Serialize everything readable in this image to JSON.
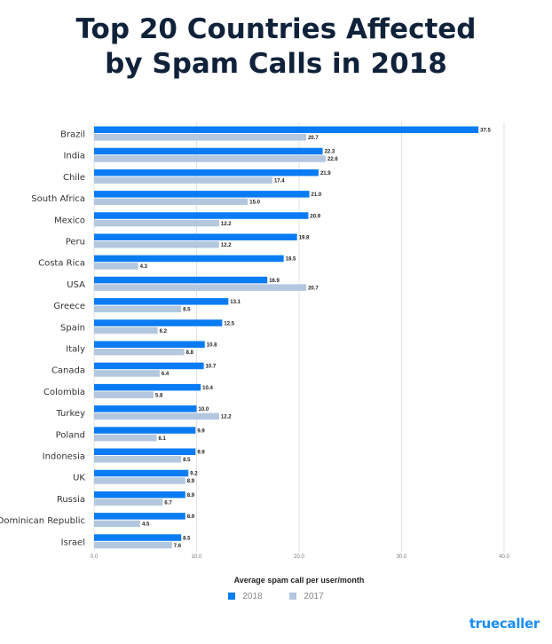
{
  "title_line1": "Top 20 Countries Affected",
  "title_line2": "by Spam Calls in 2018",
  "brand": "truecaller",
  "colors": {
    "series_2018": "#0a7cf3",
    "series_2017": "#b3c7df",
    "title": "#10223a",
    "brand": "#1b8df7"
  },
  "chart_data": {
    "type": "bar",
    "orientation": "horizontal",
    "title": "Top 20 Countries Affected by Spam Calls in 2018",
    "xlabel": "Average spam call per user/month",
    "ylabel": "",
    "xlim": [
      0,
      40
    ],
    "xticks": [
      0,
      10,
      20,
      30,
      40
    ],
    "xtick_labels": [
      "0.0",
      "10.0",
      "20.0",
      "30.0",
      "40.0"
    ],
    "grid": true,
    "legend_position": "bottom",
    "categories": [
      "Brazil",
      "India",
      "Chile",
      "South Africa",
      "Mexico",
      "Peru",
      "Costa Rica",
      "USA",
      "Greece",
      "Spain",
      "Italy",
      "Canada",
      "Colombia",
      "Turkey",
      "Poland",
      "Indonesia",
      "UK",
      "Russia",
      "Dominican Republic",
      "Israel"
    ],
    "series": [
      {
        "name": "2018",
        "values": [
          37.5,
          22.3,
          21.9,
          21.0,
          20.9,
          19.8,
          18.5,
          16.9,
          13.1,
          12.5,
          10.8,
          10.7,
          10.4,
          10.0,
          9.9,
          9.9,
          9.2,
          8.9,
          8.9,
          8.5
        ]
      },
      {
        "name": "2017",
        "values": [
          20.7,
          22.6,
          17.4,
          15.0,
          12.2,
          12.2,
          4.3,
          20.7,
          8.5,
          6.2,
          8.8,
          6.4,
          5.8,
          12.2,
          6.1,
          8.5,
          8.9,
          6.7,
          4.5,
          7.6
        ]
      }
    ]
  }
}
